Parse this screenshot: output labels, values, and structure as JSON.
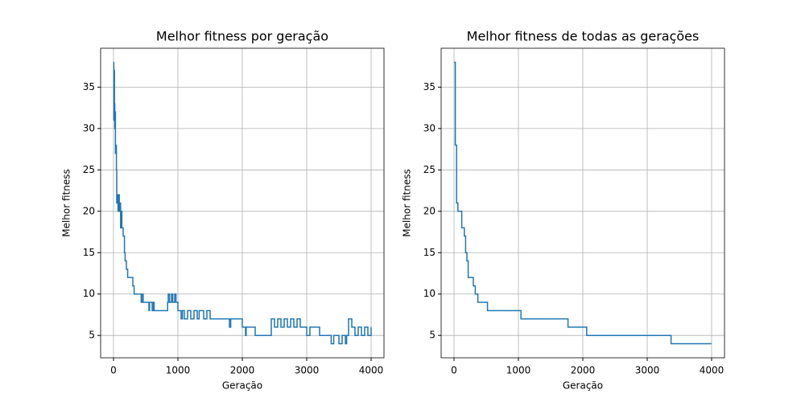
{
  "chart_data": [
    {
      "type": "line",
      "title": "Melhor fitness por geração",
      "xlabel": "Geração",
      "ylabel": "Melhor fitness",
      "xlim": [
        -200,
        4200
      ],
      "ylim": [
        2.3,
        39.7
      ],
      "xticks": [
        0,
        1000,
        2000,
        3000,
        4000
      ],
      "yticks": [
        5,
        10,
        15,
        20,
        25,
        30,
        35
      ],
      "grid": true,
      "drawstyle": "steps-post",
      "series": [
        {
          "color": "#1f77b4",
          "x": [
            0,
            5,
            10,
            15,
            20,
            25,
            30,
            40,
            45,
            50,
            60,
            70,
            80,
            90,
            100,
            110,
            120,
            130,
            150,
            170,
            180,
            200,
            220,
            280,
            300,
            320,
            420,
            430,
            450,
            460,
            550,
            560,
            600,
            620,
            630,
            840,
            850,
            870,
            900,
            920,
            950,
            970,
            1000,
            1050,
            1070,
            1100,
            1150,
            1200,
            1250,
            1300,
            1330,
            1400,
            1450,
            1500,
            1800,
            1820,
            2000,
            2050,
            2060,
            2200,
            2450,
            2500,
            2550,
            2600,
            2650,
            2700,
            2750,
            2800,
            2850,
            2900,
            3000,
            3050,
            3200,
            3380,
            3420,
            3500,
            3550,
            3600,
            3620,
            3650,
            3700,
            3750,
            3800,
            3850,
            3900,
            3950,
            4000
          ],
          "values": [
            38,
            31,
            37,
            33,
            30,
            32,
            27,
            28,
            25,
            21,
            22,
            20,
            22,
            20,
            21,
            18,
            20,
            18,
            17,
            15,
            14,
            13,
            12,
            12,
            11,
            10,
            10,
            9,
            10,
            9,
            8,
            9,
            8,
            9,
            8,
            9,
            10,
            9,
            10,
            9,
            10,
            9,
            8,
            7,
            8,
            7,
            8,
            7,
            8,
            7,
            8,
            7,
            8,
            7,
            6,
            7,
            6,
            5,
            6,
            5,
            7,
            6,
            7,
            6,
            7,
            6,
            7,
            6,
            7,
            6,
            5,
            6,
            5,
            4,
            5,
            4,
            5,
            4,
            5,
            7,
            6,
            5,
            6,
            5,
            6,
            5,
            6
          ]
        }
      ]
    },
    {
      "type": "line",
      "title": "Melhor fitness de todas as gerações",
      "xlabel": "Geração",
      "ylabel": "Melhor fitness",
      "xlim": [
        -200,
        4200
      ],
      "ylim": [
        2.3,
        39.7
      ],
      "xticks": [
        0,
        1000,
        2000,
        3000,
        4000
      ],
      "yticks": [
        5,
        10,
        15,
        20,
        25,
        30,
        35
      ],
      "grid": true,
      "drawstyle": "steps-post",
      "series": [
        {
          "color": "#1f77b4",
          "x": [
            0,
            20,
            40,
            60,
            120,
            160,
            180,
            200,
            220,
            300,
            330,
            370,
            520,
            1040,
            1770,
            2060,
            3370,
            4000
          ],
          "values": [
            38,
            28,
            21,
            20,
            18,
            17,
            15,
            14,
            12,
            11,
            10,
            9,
            8,
            7,
            6,
            5,
            4,
            4
          ]
        }
      ]
    }
  ]
}
